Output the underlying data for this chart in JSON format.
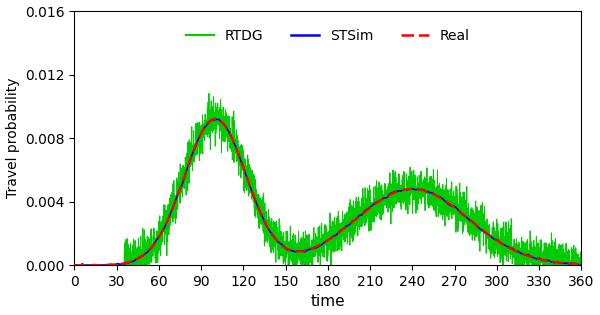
{
  "title": "",
  "xlabel": "time",
  "ylabel": "Travel probability",
  "xlim": [
    0,
    360
  ],
  "ylim": [
    0,
    0.016
  ],
  "xticks": [
    0,
    30,
    60,
    90,
    120,
    150,
    180,
    210,
    240,
    270,
    300,
    330,
    360
  ],
  "yticks": [
    0.0,
    0.004,
    0.008,
    0.012,
    0.016
  ],
  "legend_labels": [
    "RTDG",
    "STSim",
    "Real"
  ],
  "line_rtdg_color": "#00cc00",
  "line_stsim_color": "#0000ff",
  "line_real_color": "#ff0000",
  "peak1_mu": 100,
  "peak1_sigma": 22,
  "peak1_amp": 0.0092,
  "peak2_mu": 240,
  "peak2_sigma": 40,
  "peak2_amp": 0.0048,
  "rtdg_noise_std": 0.00065,
  "stsim_noise_std": 0.00018,
  "stsim_noise_smooth": 8,
  "n_points": 3600,
  "figsize": [
    6.0,
    3.15
  ],
  "dpi": 100
}
